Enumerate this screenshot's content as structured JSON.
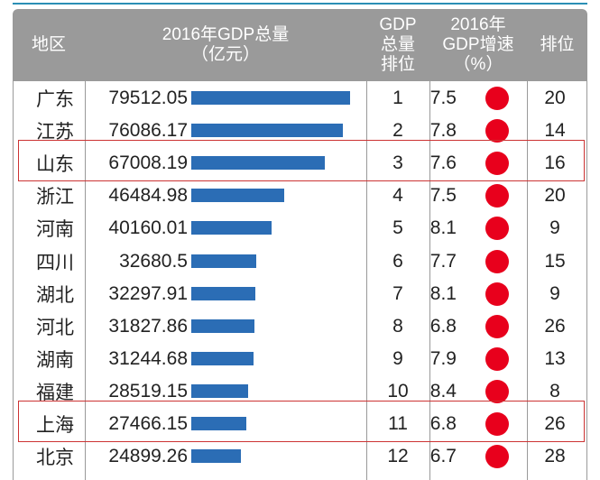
{
  "headers": {
    "region": "地区",
    "gdp_line1": "2016年GDP总量",
    "gdp_line2": "（亿元）",
    "rank_line1": "GDP",
    "rank_line2": "总量",
    "rank_line3": "排位",
    "growth_line1": "2016年",
    "growth_line2": "GDP增速",
    "growth_line3": "（%）",
    "growth_rank": "排位"
  },
  "chart_data": {
    "type": "bar",
    "categories": [
      "广东",
      "江苏",
      "山东",
      "浙江",
      "河南",
      "四川",
      "湖北",
      "河北",
      "湖南",
      "福建",
      "上海",
      "北京"
    ],
    "series": [
      {
        "values": [
          79512.05,
          76086.17,
          67008.19,
          46484.98,
          40160.01,
          32680.5,
          32297.91,
          31827.86,
          31244.68,
          28519.15,
          27466.15,
          24899.26
        ]
      }
    ],
    "xlim": [
      0,
      79512.05
    ]
  },
  "rows": [
    {
      "region": "广东",
      "gdp": "79512.05",
      "rank": "1",
      "growth": "7.5",
      "growth_rank": "20"
    },
    {
      "region": "江苏",
      "gdp": "76086.17",
      "rank": "2",
      "growth": "7.8",
      "growth_rank": "14"
    },
    {
      "region": "山东",
      "gdp": "67008.19",
      "rank": "3",
      "growth": "7.6",
      "growth_rank": "16"
    },
    {
      "region": "浙江",
      "gdp": "46484.98",
      "rank": "4",
      "growth": "7.5",
      "growth_rank": "20"
    },
    {
      "region": "河南",
      "gdp": "40160.01",
      "rank": "5",
      "growth": "8.1",
      "growth_rank": "9"
    },
    {
      "region": "四川",
      "gdp": "32680.5",
      "rank": "6",
      "growth": "7.7",
      "growth_rank": "15"
    },
    {
      "region": "湖北",
      "gdp": "32297.91",
      "rank": "7",
      "growth": "8.1",
      "growth_rank": "9"
    },
    {
      "region": "河北",
      "gdp": "31827.86",
      "rank": "8",
      "growth": "6.8",
      "growth_rank": "26"
    },
    {
      "region": "湖南",
      "gdp": "31244.68",
      "rank": "9",
      "growth": "7.9",
      "growth_rank": "13"
    },
    {
      "region": "福建",
      "gdp": "28519.15",
      "rank": "10",
      "growth": "8.4",
      "growth_rank": "8"
    },
    {
      "region": "上海",
      "gdp": "27466.15",
      "rank": "11",
      "growth": "6.8",
      "growth_rank": "26"
    },
    {
      "region": "北京",
      "gdp": "24899.26",
      "rank": "12",
      "growth": "6.7",
      "growth_rank": "28"
    }
  ],
  "highlighted_regions": [
    "山东",
    "上海"
  ],
  "colors": {
    "header_bg": "#9a9a9a",
    "bar": "#2b6db5",
    "dot": "#e8001c",
    "highlight": "#cc3333",
    "accent_line": "#2b8fb5"
  }
}
